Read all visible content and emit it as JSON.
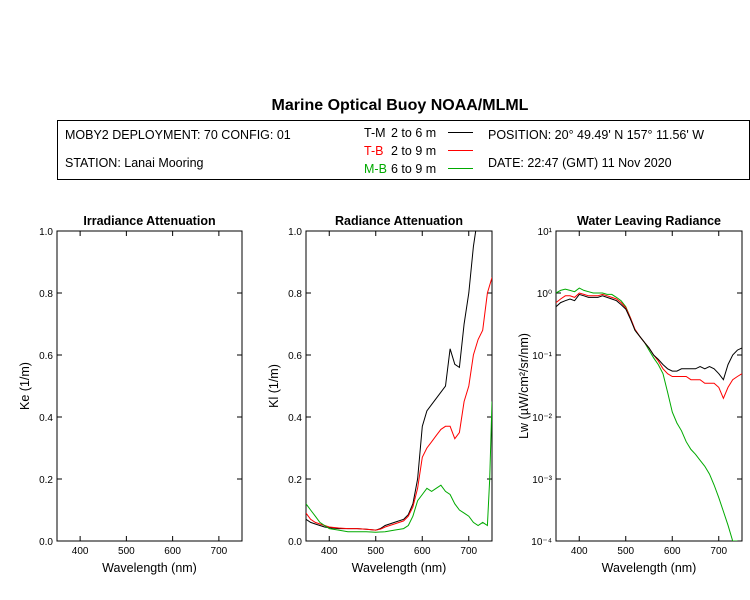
{
  "title": "Marine Optical Buoy NOAA/MLML",
  "info": {
    "deployment": "MOBY2 DEPLOYMENT: 70 CONFIG: 01",
    "station": "STATION: Lanai Mooring",
    "position": "POSITION: 20° 49.49' N   157° 11.56' W",
    "date": "DATE: 22:47 (GMT) 11 Nov 2020"
  },
  "legend": [
    {
      "code": "T-M",
      "range": "2 to 6  m",
      "color": "#000000"
    },
    {
      "code": "T-B",
      "range": "2 to 9  m",
      "color": "#ff0000"
    },
    {
      "code": "M-B",
      "range": "6 to 9  m",
      "color": "#00aa00"
    }
  ],
  "chart_data": [
    {
      "type": "line",
      "title": "Irradiance Attenuation",
      "xlabel": "Wavelength (nm)",
      "ylabel": "Ke  (1/m)",
      "xlim": [
        350,
        750
      ],
      "ylim": [
        0,
        1
      ],
      "x_ticks": [
        "400",
        "500",
        "600",
        "700"
      ],
      "y_ticks": [
        "0.0",
        "0.2",
        "0.4",
        "0.6",
        "0.8",
        "1.0"
      ],
      "series": []
    },
    {
      "type": "line",
      "title": "Radiance Attenuation",
      "xlabel": "Wavelength (nm)",
      "ylabel": "Kl  (1/m)",
      "xlim": [
        350,
        750
      ],
      "ylim": [
        0,
        1
      ],
      "x_ticks": [
        "400",
        "500",
        "600",
        "700"
      ],
      "y_ticks": [
        "0.0",
        "0.2",
        "0.4",
        "0.6",
        "0.8",
        "1.0"
      ],
      "series": [
        {
          "name": "T-M",
          "color": "#000000",
          "x": [
            350,
            360,
            370,
            380,
            390,
            400,
            420,
            440,
            460,
            480,
            500,
            510,
            520,
            540,
            560,
            570,
            580,
            590,
            600,
            610,
            620,
            630,
            640,
            650,
            660,
            670,
            680,
            690,
            700,
            710,
            715
          ],
          "y": [
            0.07,
            0.06,
            0.055,
            0.05,
            0.045,
            0.043,
            0.04,
            0.04,
            0.04,
            0.038,
            0.035,
            0.04,
            0.05,
            0.06,
            0.07,
            0.085,
            0.12,
            0.2,
            0.37,
            0.42,
            0.44,
            0.46,
            0.48,
            0.5,
            0.62,
            0.57,
            0.56,
            0.7,
            0.8,
            0.95,
            1.0
          ]
        },
        {
          "name": "T-B",
          "color": "#ff0000",
          "x": [
            350,
            360,
            370,
            380,
            390,
            400,
            420,
            440,
            460,
            480,
            500,
            510,
            520,
            540,
            560,
            570,
            580,
            590,
            600,
            610,
            620,
            630,
            640,
            650,
            660,
            670,
            680,
            690,
            700,
            710,
            720,
            730,
            740,
            750
          ],
          "y": [
            0.09,
            0.07,
            0.06,
            0.055,
            0.05,
            0.045,
            0.042,
            0.04,
            0.04,
            0.038,
            0.035,
            0.038,
            0.045,
            0.055,
            0.065,
            0.08,
            0.11,
            0.17,
            0.27,
            0.3,
            0.32,
            0.34,
            0.36,
            0.37,
            0.37,
            0.33,
            0.35,
            0.45,
            0.5,
            0.6,
            0.65,
            0.68,
            0.8,
            0.85
          ]
        },
        {
          "name": "M-B",
          "color": "#00aa00",
          "x": [
            350,
            360,
            370,
            380,
            390,
            400,
            420,
            440,
            460,
            480,
            500,
            520,
            540,
            560,
            570,
            580,
            590,
            600,
            610,
            620,
            630,
            640,
            650,
            660,
            670,
            680,
            690,
            700,
            710,
            720,
            730,
            740,
            745,
            750
          ],
          "y": [
            0.12,
            0.1,
            0.08,
            0.06,
            0.05,
            0.04,
            0.035,
            0.03,
            0.03,
            0.03,
            0.028,
            0.03,
            0.035,
            0.04,
            0.05,
            0.08,
            0.13,
            0.15,
            0.17,
            0.16,
            0.17,
            0.18,
            0.16,
            0.15,
            0.12,
            0.1,
            0.09,
            0.08,
            0.06,
            0.05,
            0.06,
            0.05,
            0.2,
            0.45
          ]
        }
      ]
    },
    {
      "type": "line",
      "title": "Water Leaving Radiance",
      "xlabel": "Wavelength (nm)",
      "ylabel": "Lw  (µW/cm²/sr/nm)",
      "scale": "log",
      "xlim": [
        350,
        750
      ],
      "ylim": [
        0.0001,
        10
      ],
      "x_ticks": [
        "400",
        "500",
        "600",
        "700"
      ],
      "y_ticks": [
        "10⁻⁴",
        "10⁻³",
        "10⁻²",
        "10⁻¹",
        "10⁰",
        "10¹"
      ],
      "series": [
        {
          "name": "M-B",
          "color": "#00aa00",
          "x": [
            350,
            360,
            370,
            380,
            390,
            400,
            410,
            420,
            430,
            440,
            450,
            460,
            470,
            480,
            490,
            500,
            510,
            520,
            530,
            540,
            550,
            560,
            570,
            580,
            590,
            600,
            610,
            620,
            630,
            640,
            650,
            660,
            670,
            680,
            690,
            700,
            710,
            720,
            730,
            740
          ],
          "y": [
            1.0,
            1.1,
            1.15,
            1.1,
            1.05,
            1.2,
            1.1,
            1.05,
            1.0,
            1.0,
            1.0,
            0.95,
            0.95,
            0.85,
            0.75,
            0.6,
            0.4,
            0.25,
            0.2,
            0.16,
            0.12,
            0.09,
            0.07,
            0.05,
            0.025,
            0.012,
            0.008,
            0.006,
            0.004,
            0.003,
            0.0025,
            0.002,
            0.0016,
            0.0012,
            0.0008,
            0.0005,
            0.0003,
            0.00018,
            0.0001,
            5e-05
          ]
        },
        {
          "name": "T-B",
          "color": "#ff0000",
          "x": [
            350,
            360,
            370,
            380,
            390,
            400,
            410,
            420,
            430,
            440,
            450,
            460,
            470,
            480,
            490,
            500,
            510,
            520,
            530,
            540,
            550,
            560,
            570,
            580,
            590,
            600,
            610,
            620,
            630,
            640,
            650,
            660,
            670,
            680,
            690,
            700,
            710,
            720,
            730,
            740,
            750
          ],
          "y": [
            0.7,
            0.8,
            0.9,
            0.9,
            0.85,
            1.0,
            0.95,
            0.9,
            0.9,
            0.9,
            0.95,
            0.9,
            0.85,
            0.8,
            0.7,
            0.58,
            0.4,
            0.26,
            0.2,
            0.16,
            0.13,
            0.1,
            0.08,
            0.06,
            0.05,
            0.045,
            0.045,
            0.045,
            0.045,
            0.04,
            0.04,
            0.04,
            0.035,
            0.035,
            0.035,
            0.03,
            0.02,
            0.03,
            0.04,
            0.045,
            0.05
          ]
        },
        {
          "name": "T-M",
          "color": "#000000",
          "x": [
            350,
            360,
            370,
            380,
            390,
            400,
            410,
            420,
            430,
            440,
            450,
            460,
            470,
            480,
            490,
            500,
            510,
            520,
            530,
            540,
            550,
            560,
            570,
            580,
            590,
            600,
            610,
            620,
            630,
            640,
            650,
            660,
            670,
            680,
            690,
            700,
            710,
            720,
            730,
            740,
            750
          ],
          "y": [
            0.6,
            0.7,
            0.75,
            0.8,
            0.75,
            0.95,
            0.9,
            0.85,
            0.85,
            0.85,
            0.9,
            0.85,
            0.8,
            0.75,
            0.65,
            0.55,
            0.38,
            0.25,
            0.2,
            0.16,
            0.13,
            0.1,
            0.085,
            0.07,
            0.06,
            0.055,
            0.055,
            0.06,
            0.06,
            0.06,
            0.06,
            0.065,
            0.06,
            0.065,
            0.06,
            0.05,
            0.04,
            0.07,
            0.1,
            0.12,
            0.13
          ]
        }
      ]
    }
  ]
}
